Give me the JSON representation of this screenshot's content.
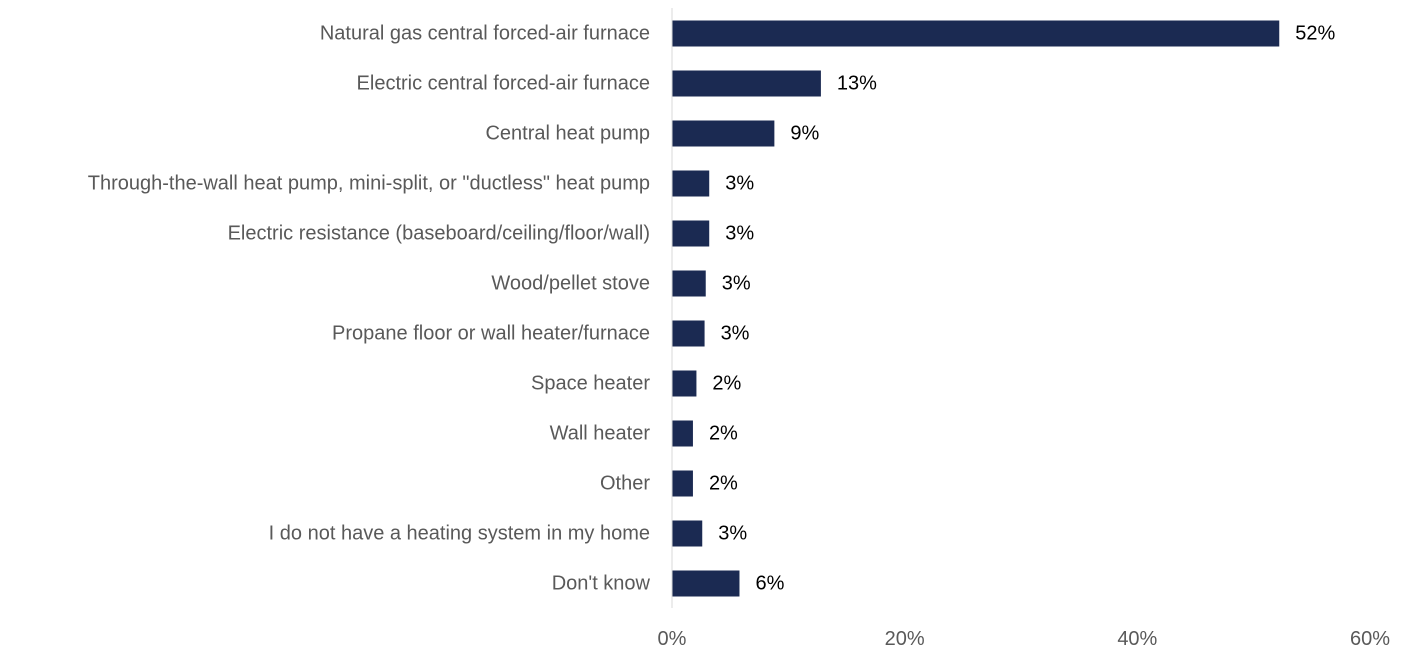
{
  "chart_data": {
    "type": "bar",
    "orientation": "horizontal",
    "categories": [
      "Natural gas central forced-air furnace",
      "Electric central forced-air furnace",
      "Central heat pump",
      "Through-the-wall heat pump, mini-split, or \"ductless\" heat pump",
      "Electric resistance (baseboard/ceiling/floor/wall)",
      "Wood/pellet stove",
      "Propane floor or wall heater/furnace",
      "Space heater",
      "Wall heater",
      "Other",
      "I do not have a heating system in my home",
      "Don't know"
    ],
    "values": [
      52.2,
      12.8,
      8.8,
      3.2,
      3.2,
      2.9,
      2.8,
      2.1,
      1.8,
      1.8,
      2.6,
      5.8
    ],
    "value_labels": [
      "52%",
      "13%",
      "9%",
      "3%",
      "3%",
      "3%",
      "3%",
      "2%",
      "2%",
      "2%",
      "3%",
      "6%"
    ],
    "xlim": [
      0,
      60
    ],
    "x_ticks": [
      0,
      20,
      40,
      60
    ],
    "x_tick_labels": [
      "0%",
      "20%",
      "40%",
      "60%"
    ],
    "bar_color": "#1b2a52",
    "axis_color": "#d9d9d9",
    "grid": false,
    "legend": "none"
  }
}
